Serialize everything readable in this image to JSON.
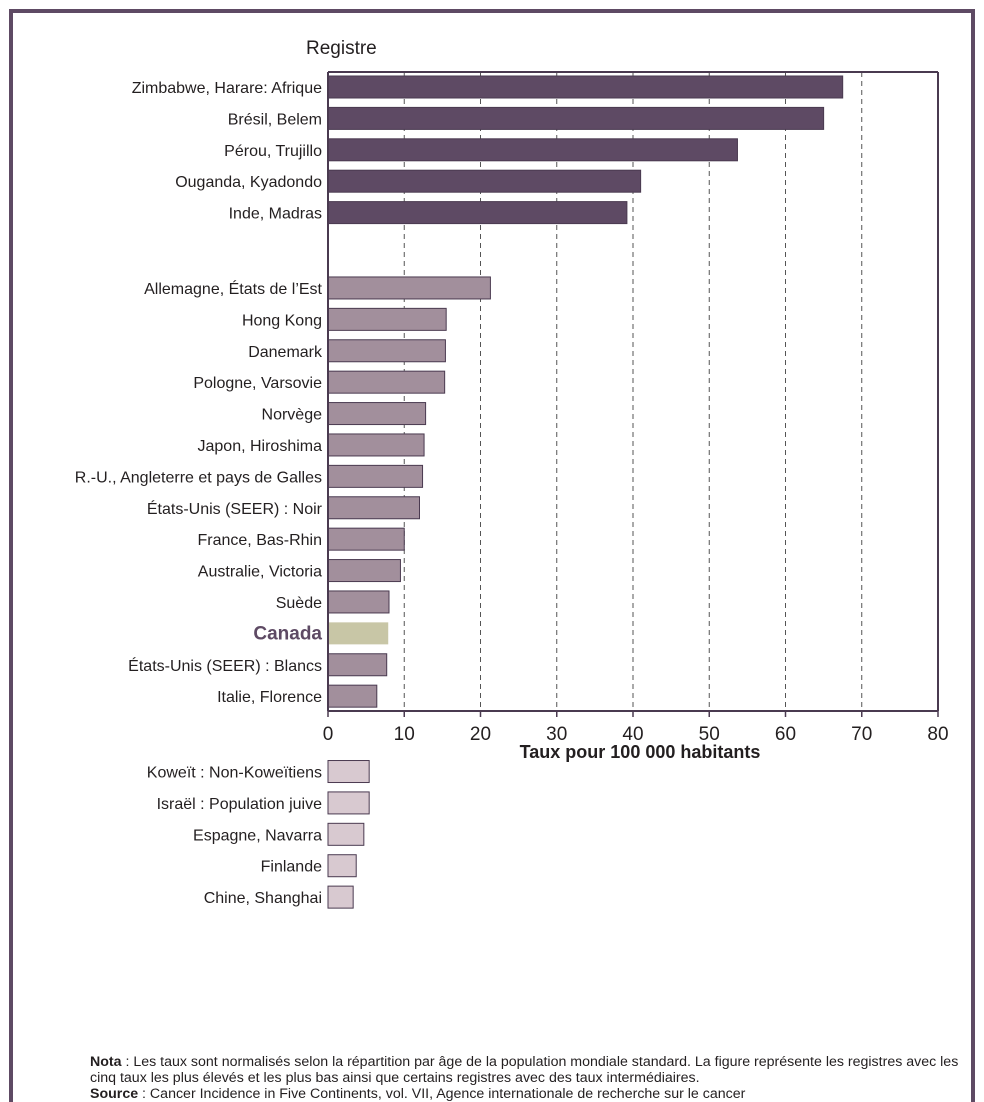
{
  "chart_data": {
    "type": "bar",
    "orientation": "horizontal",
    "yheader": "Registre",
    "xlabel": "Taux pour 100 000 habitants",
    "xlim": [
      0,
      80
    ],
    "xticks": [
      0,
      10,
      20,
      30,
      40,
      50,
      60,
      70,
      80
    ],
    "grid": "vertical-dashed",
    "groups": [
      {
        "color": "#5e4a64",
        "categories": [
          "Zimbabwe, Harare: Afrique",
          "Brésil, Belem",
          "Pérou, Trujillo",
          "Ouganda, Kyadondo",
          "Inde, Madras"
        ],
        "values": [
          67.5,
          65,
          53.7,
          41,
          39.2
        ]
      },
      {
        "color": "#a28f9c",
        "categories": [
          "Allemagne, États de l’Est",
          "Hong Kong",
          "Danemark",
          "Pologne, Varsovie",
          "Norvège",
          "Japon, Hiroshima",
          "R.-U., Angleterre et pays de Galles",
          "États-Unis (SEER) : Noir",
          "France, Bas-Rhin",
          "Australie, Victoria",
          "Suède",
          "Canada",
          "États-Unis (SEER) : Blancs",
          "Italie, Florence"
        ],
        "values": [
          21.3,
          15.5,
          15.4,
          15.3,
          12.8,
          12.6,
          12.4,
          12,
          10,
          9.5,
          8,
          7.9,
          7.7,
          6.4
        ]
      },
      {
        "color": "#d8c9d0",
        "categories": [
          "Koweït : Non-Koweïtiens",
          "Israël : Population juive",
          "Espagne, Navarra",
          "Finlande",
          "Chine, Shanghai"
        ],
        "values": [
          5.4,
          5.4,
          4.7,
          3.7,
          3.3
        ]
      }
    ],
    "highlight": {
      "category": "Canada",
      "color": "#c8c6a6"
    }
  },
  "notes": {
    "nota_label": "Nota",
    "nota_text": " : Les taux sont normalisés selon la répartition par âge de la population mondiale standard. La figure représente les registres avec les cinq taux les plus élevés et les plus bas ainsi que certains registres avec des taux intermédiaires.",
    "source_label": "Source",
    "source_text": " : Cancer Incidence in Five Continents, vol. VII, Agence internationale de recherche sur le cancer"
  }
}
